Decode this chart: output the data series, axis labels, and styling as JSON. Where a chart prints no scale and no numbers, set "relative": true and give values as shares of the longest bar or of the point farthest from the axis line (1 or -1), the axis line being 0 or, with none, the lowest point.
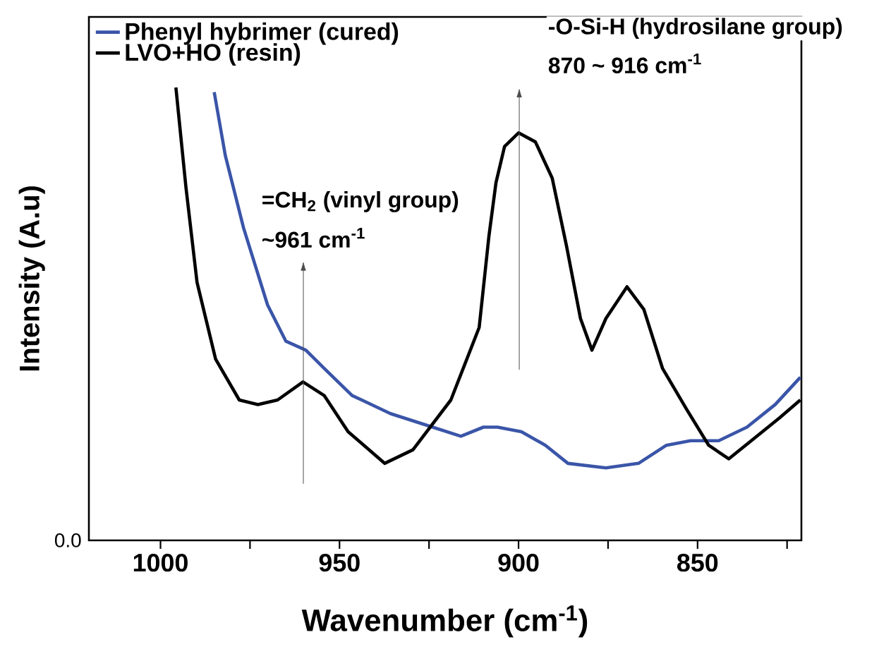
{
  "chart_data": {
    "type": "line",
    "relative": true,
    "xlabel": "Wavenumber (cm$^{-1}$)",
    "ylabel": "Intensity (A.u)",
    "xlim": [
      1020,
      821
    ],
    "xticks": [
      1000,
      950,
      900,
      850,
      {
        "value": 975,
        "label": null
      },
      {
        "value": 925,
        "label": null
      },
      {
        "value": 875,
        "label": null
      },
      {
        "value": 825,
        "label": null
      }
    ],
    "legend": "top left",
    "marker": "none",
    "line_style": "solid",
    "series": [
      {
        "name": "Phenyl hybrimer (cured)",
        "color": "#3a55a8",
        "x": [
          985.0,
          981.9,
          976.8,
          970.1,
          965.0,
          959.4,
          954.3,
          946.5,
          935.8,
          924.0,
          916.1,
          909.8,
          905.9,
          899.2,
          892.5,
          886.2,
          875.6,
          866.5,
          858.7,
          852.0,
          844.1,
          836.2,
          828.3,
          821.3
        ],
        "values": [
          0.99,
          0.85,
          0.69,
          0.52,
          0.44,
          0.42,
          0.38,
          0.32,
          0.28,
          0.25,
          0.23,
          0.25,
          0.25,
          0.24,
          0.21,
          0.17,
          0.16,
          0.17,
          0.21,
          0.22,
          0.22,
          0.25,
          0.3,
          0.36
        ]
      },
      {
        "name": "LVO+HO (resin)",
        "color": "#000000",
        "x": [
          995.7,
          992.9,
          989.8,
          984.6,
          978.0,
          972.8,
          967.3,
          960.2,
          954.3,
          947.6,
          937.4,
          929.5,
          918.9,
          911.0,
          908.3,
          906.3,
          903.9,
          900.0,
          895.3,
          890.6,
          886.6,
          882.7,
          879.5,
          875.6,
          869.7,
          865.0,
          859.8,
          853.1,
          846.9,
          841.3,
          835.0,
          827.2,
          821.3
        ],
        "values": [
          1.0,
          0.78,
          0.57,
          0.4,
          0.31,
          0.3,
          0.31,
          0.35,
          0.32,
          0.24,
          0.17,
          0.2,
          0.31,
          0.47,
          0.67,
          0.79,
          0.87,
          0.9,
          0.88,
          0.8,
          0.65,
          0.49,
          0.42,
          0.49,
          0.56,
          0.51,
          0.38,
          0.29,
          0.21,
          0.18,
          0.22,
          0.27,
          0.31
        ]
      }
    ],
    "annotations": [
      "=CH$_{2}$ (vinyl group)",
      "~961 cm$^{-1}$",
      "-O-Si-H (hydrosilane group)",
      "870 ~ 916 cm$^{-1}$",
      "0.0"
    ]
  }
}
